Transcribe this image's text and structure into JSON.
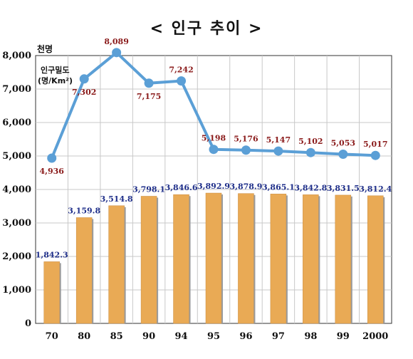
{
  "title": "< 인구 추이 >",
  "chart_data": {
    "type": "bar",
    "y_unit": "천명",
    "yticks": [
      "0",
      "1,000",
      "2,000",
      "3,000",
      "4,000",
      "5,000",
      "6,000",
      "7,000",
      "8,000"
    ],
    "ylim": [
      0,
      8000
    ],
    "grid": true,
    "categories": [
      "70",
      "80",
      "85",
      "90",
      "94",
      "95",
      "96",
      "97",
      "98",
      "99",
      "2000"
    ],
    "series": [
      {
        "values": [
          1842.3,
          3159.8,
          3514.8,
          3798.1,
          3846.6,
          3892.9,
          3878.9,
          3865.1,
          3842.8,
          3831.5,
          3812.4
        ],
        "labels": [
          "1,842.3",
          "3,159.8",
          "3,514.8",
          "3,798.1",
          "3,846.6",
          "3,892.9",
          "3,878.9",
          "3,865.1",
          "3,842.8",
          "3,831.5",
          "3,812.4"
        ],
        "color": "#e9aa55"
      },
      {
        "name": "인구밀도 (명/Km²)",
        "type": "line",
        "values": [
          4936,
          7302,
          8089,
          7175,
          7242,
          5198,
          5176,
          5147,
          5102,
          5053,
          5017
        ],
        "labels": [
          "4,936",
          "7,302",
          "8,089",
          "7,175",
          "7,242",
          "5,198",
          "5,176",
          "5,147",
          "5,102",
          "5,053",
          "5,017"
        ],
        "color": "#5b9fd6"
      }
    ],
    "legend_position": "top-left",
    "legend_line1": "인구밀도",
    "legend_line2": "(명/Km²)"
  }
}
